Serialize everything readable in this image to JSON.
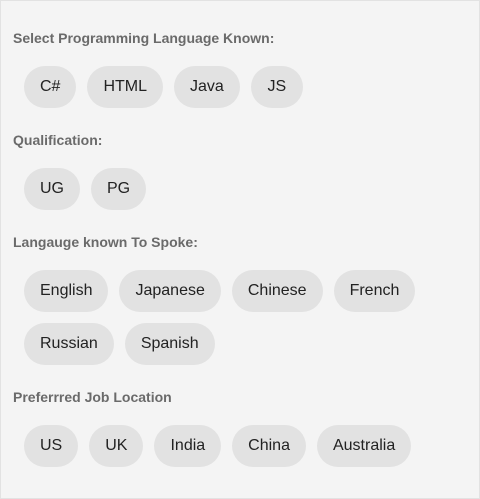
{
  "sections": [
    {
      "label": "Select Programming Language Known:",
      "chips": [
        "C#",
        "HTML",
        "Java",
        "JS"
      ]
    },
    {
      "label": "Qualification:",
      "chips": [
        "UG",
        "PG"
      ]
    },
    {
      "label": "Langauge known To Spoke:",
      "chips": [
        "English",
        "Japanese",
        "Chinese",
        "French",
        "Russian",
        "Spanish"
      ]
    },
    {
      "label": "Preferrred Job Location",
      "chips": [
        "US",
        "UK",
        "India",
        "China",
        "Australia"
      ]
    }
  ]
}
